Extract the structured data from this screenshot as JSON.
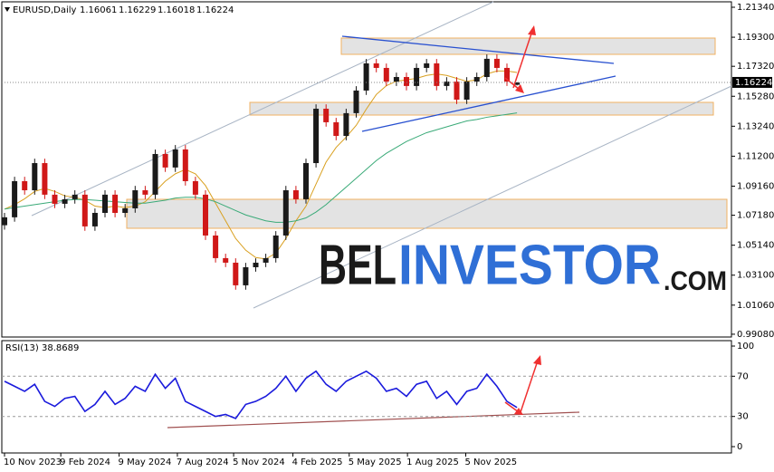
{
  "chart_data": {
    "type": "candlestick",
    "symbol": "EURUSD,Daily",
    "watermark": {
      "part1": "BEL",
      "part2": "INVESTOR",
      "part3": ".COM"
    },
    "up_color": "#1a1a1a",
    "down_color": "#d01818",
    "open": [
      1.065,
      1.0704,
      1.095,
      1.0888,
      1.1073,
      1.0858,
      1.0796,
      1.0827,
      1.0858,
      1.0642,
      1.0734,
      1.0858,
      1.0734,
      1.0765,
      1.0888,
      1.0858,
      1.1135,
      1.1043,
      1.1166,
      1.095,
      1.0858,
      1.058,
      1.0426,
      1.0395,
      1.0241,
      1.0364,
      1.0395,
      1.0426,
      1.058,
      1.0888,
      1.0827,
      1.1073,
      1.1443,
      1.1351,
      1.1258,
      1.1413,
      1.1567,
      1.1752,
      1.1721,
      1.1628,
      1.1659,
      1.1598,
      1.1721,
      1.1752,
      1.1598,
      1.1628,
      1.1505,
      1.1628,
      1.1659,
      1.1783,
      1.1721,
      1.16061
    ],
    "high": [
      1.0734,
      1.098,
      1.098,
      1.1103,
      1.1103,
      1.0888,
      1.0857,
      1.0888,
      1.0888,
      1.0764,
      1.0888,
      1.0888,
      1.0795,
      1.0918,
      1.0918,
      1.1165,
      1.1165,
      1.1196,
      1.1196,
      1.098,
      1.0888,
      1.061,
      1.0456,
      1.0425,
      1.0394,
      1.0425,
      1.0456,
      1.061,
      1.0918,
      1.0918,
      1.1103,
      1.1473,
      1.1473,
      1.1381,
      1.1443,
      1.1597,
      1.1782,
      1.1782,
      1.1751,
      1.1689,
      1.1689,
      1.1751,
      1.1782,
      1.1782,
      1.1658,
      1.1658,
      1.1658,
      1.1689,
      1.1813,
      1.1813,
      1.1751,
      1.16229
    ],
    "low": [
      1.062,
      1.0674,
      1.0858,
      1.0858,
      1.0828,
      1.0766,
      1.0766,
      1.0797,
      1.0612,
      1.0612,
      1.0704,
      1.0704,
      1.0704,
      1.0735,
      1.0828,
      1.0828,
      1.1013,
      1.1013,
      1.092,
      1.0828,
      1.055,
      1.0396,
      1.0365,
      1.0211,
      1.0211,
      1.0334,
      1.0365,
      1.0396,
      1.055,
      1.0797,
      1.0797,
      1.1043,
      1.1321,
      1.1228,
      1.1228,
      1.1383,
      1.1537,
      1.1691,
      1.1598,
      1.1598,
      1.1568,
      1.1568,
      1.1691,
      1.1568,
      1.1568,
      1.1475,
      1.1475,
      1.1598,
      1.1629,
      1.1691,
      1.1598,
      1.16018
    ],
    "close": [
      1.0704,
      1.095,
      1.0888,
      1.1073,
      1.0858,
      1.0796,
      1.0827,
      1.0858,
      1.0642,
      1.0734,
      1.0858,
      1.0734,
      1.0765,
      1.0888,
      1.0858,
      1.1135,
      1.1043,
      1.1166,
      1.095,
      1.0858,
      1.058,
      1.0426,
      1.0395,
      1.0241,
      1.0364,
      1.0395,
      1.0426,
      1.058,
      1.0888,
      1.0827,
      1.1073,
      1.1443,
      1.1351,
      1.1258,
      1.1413,
      1.1567,
      1.1752,
      1.1721,
      1.1628,
      1.1659,
      1.1598,
      1.1721,
      1.1752,
      1.1598,
      1.1628,
      1.1505,
      1.1628,
      1.1659,
      1.1783,
      1.1721,
      1.1628,
      1.16224
    ],
    "overlays": [
      {
        "color": "#d9a020",
        "values": [
          1.076,
          1.079,
          1.083,
          1.088,
          1.09,
          1.088,
          1.085,
          1.084,
          1.082,
          1.078,
          1.077,
          1.078,
          1.077,
          1.078,
          1.081,
          1.088,
          1.095,
          1.1,
          1.103,
          1.1,
          1.092,
          1.08,
          1.068,
          1.056,
          1.048,
          1.043,
          1.042,
          1.046,
          1.056,
          1.068,
          1.078,
          1.093,
          1.108,
          1.118,
          1.125,
          1.133,
          1.144,
          1.154,
          1.16,
          1.163,
          1.164,
          1.165,
          1.167,
          1.168,
          1.167,
          1.165,
          1.163,
          1.164,
          1.168,
          1.17,
          1.17,
          1.169
        ]
      },
      {
        "color": "#3aaa78",
        "values": [
          1.076,
          1.077,
          1.078,
          1.079,
          1.08,
          1.081,
          1.082,
          1.0825,
          1.0825,
          1.082,
          1.0815,
          1.081,
          1.0805,
          1.08,
          1.08,
          1.081,
          1.082,
          1.0835,
          1.084,
          1.084,
          1.083,
          1.081,
          1.078,
          1.075,
          1.072,
          1.07,
          1.068,
          1.067,
          1.067,
          1.068,
          1.07,
          1.074,
          1.079,
          1.085,
          1.091,
          1.097,
          1.103,
          1.109,
          1.114,
          1.118,
          1.122,
          1.125,
          1.128,
          1.13,
          1.132,
          1.134,
          1.136,
          1.137,
          1.1385,
          1.1395,
          1.1405,
          1.1415
        ]
      }
    ],
    "ylim": [
      0.9889,
      1.2171
    ],
    "yticks": [
      {
        "value": 1.2134,
        "label": "1.21340"
      },
      {
        "value": 1.193,
        "label": "1.19300"
      },
      {
        "value": 1.1732,
        "label": "1.17320"
      },
      {
        "value": 1.1528,
        "label": "1.15280"
      },
      {
        "value": 1.1324,
        "label": "1.13240"
      },
      {
        "value": 1.112,
        "label": "1.11200"
      },
      {
        "value": 1.0916,
        "label": "1.09160"
      },
      {
        "value": 1.0718,
        "label": "1.07180"
      },
      {
        "value": 1.0514,
        "label": "1.05140"
      },
      {
        "value": 1.031,
        "label": "1.03100"
      },
      {
        "value": 1.0106,
        "label": "1.01060"
      },
      {
        "value": 0.9908,
        "label": "0.99080"
      }
    ],
    "xticks": [
      {
        "value": 0,
        "label": "10 Nov 2023"
      },
      {
        "value": 5.6,
        "label": "9 Feb 2024"
      },
      {
        "value": 11.4,
        "label": "9 May 2024"
      },
      {
        "value": 17.2,
        "label": "7 Aug 2024"
      },
      {
        "value": 22.8,
        "label": "5 Nov 2024"
      },
      {
        "value": 28.7,
        "label": "4 Feb 2025"
      },
      {
        "value": 34.3,
        "label": "5 May 2025"
      },
      {
        "value": 40.1,
        "label": "1 Aug 2025"
      },
      {
        "value": 45.9,
        "label": "5 Nov 2025"
      }
    ],
    "rsi": {
      "name": "RSI(13)",
      "color": "#1a1adc",
      "values": [
        65,
        60,
        55,
        62,
        45,
        40,
        48,
        50,
        35,
        42,
        55,
        42,
        48,
        60,
        55,
        72,
        58,
        68,
        45,
        40,
        35,
        30,
        32,
        28,
        42,
        45,
        50,
        58,
        70,
        55,
        68,
        75,
        62,
        55,
        65,
        70,
        75,
        68,
        55,
        58,
        50,
        62,
        65,
        48,
        55,
        42,
        55,
        58,
        72,
        60,
        45,
        38.8689
      ],
      "ylim": [
        -6.3,
        105.4
      ],
      "yticks": [
        100,
        70,
        30,
        0
      ]
    }
  }
}
